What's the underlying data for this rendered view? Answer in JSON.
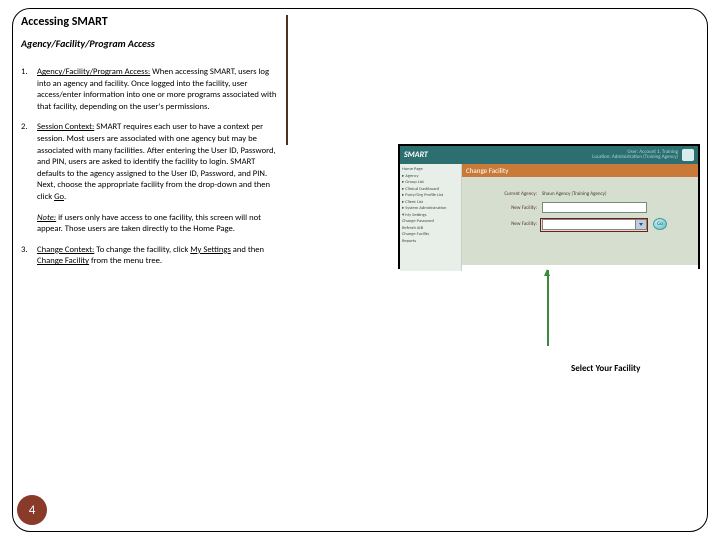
{
  "title": "Accessing SMART",
  "subtitle": "Agency/Facility/Program Access",
  "items": {
    "n1": "1.",
    "p1_lead": "Agency/Facility/Program Access:",
    "p1_rest": " When accessing SMART, users log into an agency and facility. Once logged into the facility, user access/enter information into one or more programs associated with that facility, depending on the user's permissions.",
    "n2": "2.",
    "p2_lead": "Session Context:",
    "p2_rest": " SMART requires each user to have a context per session. Most users are associated with one agency but may be associated with many facilities. After entering the User ID, Password, and PIN, users are asked to identify the facility to login. SMART defaults to the agency assigned to the User ID, Password, and PIN.  Next, choose the appropriate facility from the drop-down and then click ",
    "p2_go": "Go",
    "p2_dot": ".",
    "note_lead": "Note:",
    "note_rest": " if users only have access to one facility, this screen will not appear.  Those users are taken directly to the Home Page.",
    "n3": "3.",
    "p3_lead": "Change Context:",
    "p3_rest": " To change the facility, click ",
    "p3_link1": "My Settings",
    "p3_mid": " and then ",
    "p3_link2": "Change Facility",
    "p3_end": " from the menu tree."
  },
  "screenshot": {
    "brand": "SMART",
    "user_line1": "User:  Account 1, Training",
    "user_line2": "Location: Administration (Training Agency)",
    "heading": "Change Facility",
    "side": {
      "s1": "Home Page",
      "s2": "▸ Agency",
      "s3": "▸ Group List",
      "s4": "▸ Clinical Dashboard",
      "s5": "▸ Party/Org Profile List",
      "s6": "▸ Client List",
      "s7": "▸ System Administration",
      "s8": "▾ My Settings",
      "s9": "    Change Password",
      "s10": "    Refresh AIB",
      "s11": "    Change Facility",
      "s12": "Reports"
    },
    "row1_label": "Current Agency:",
    "row1_val": "Shaun Agency (Training Agency)",
    "row2_label": "New Facility:",
    "row3_label": "New Facility:",
    "go": "Go"
  },
  "caption": "Select Your Facility",
  "page_number": "4"
}
